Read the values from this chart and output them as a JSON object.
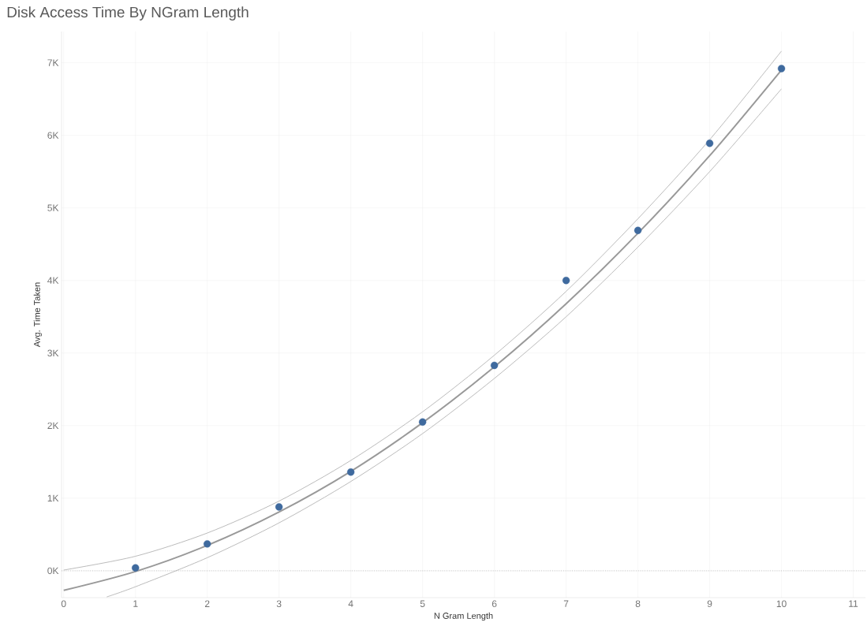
{
  "chart_data": {
    "type": "scatter",
    "title": "Disk Access Time By NGram Length",
    "xlabel": "N Gram Length",
    "ylabel": "Avg. Time Taken",
    "xlim": [
      -0.03,
      11.17
    ],
    "ylim": [
      -370,
      7430
    ],
    "xticks": [
      0,
      1,
      2,
      3,
      4,
      5,
      6,
      7,
      8,
      9,
      10,
      11
    ],
    "yticks": [
      {
        "value": 0,
        "label": "0K"
      },
      {
        "value": 1000,
        "label": "1K"
      },
      {
        "value": 2000,
        "label": "2K"
      },
      {
        "value": 3000,
        "label": "3K"
      },
      {
        "value": 4000,
        "label": "4K"
      },
      {
        "value": 5000,
        "label": "5K"
      },
      {
        "value": 6000,
        "label": "6K"
      },
      {
        "value": 7000,
        "label": "7K"
      }
    ],
    "grid": true,
    "ref_lines": [
      {
        "axis": "y",
        "value": 0,
        "color": "#b0b0b0",
        "line_style": "dotted"
      }
    ],
    "series": [
      {
        "type": "line",
        "marker": "none",
        "color": "#999999",
        "x": [
          0,
          1,
          2,
          3,
          4,
          5,
          6,
          7,
          8,
          9,
          10
        ],
        "values": [
          -270,
          -10,
          350,
          810,
          1370,
          2040,
          2810,
          3680,
          4650,
          5720,
          6900
        ]
      },
      {
        "type": "line",
        "marker": "none",
        "color": "#aaaaaa",
        "x": [
          0,
          1,
          2,
          3,
          4,
          5,
          6,
          7,
          8,
          9,
          10
        ],
        "values": [
          10,
          200,
          520,
          960,
          1520,
          2190,
          2970,
          3850,
          4850,
          5940,
          7160
        ]
      },
      {
        "type": "line",
        "marker": "none",
        "color": "#aaaaaa",
        "x": [
          0.6,
          1,
          2,
          3,
          4,
          5,
          6,
          7,
          8,
          9,
          10
        ],
        "values": [
          -360,
          -220,
          180,
          660,
          1230,
          1890,
          2650,
          3500,
          4460,
          5500,
          6640
        ]
      },
      {
        "marker": "circle",
        "color": "#3f6a9e",
        "x": [
          1,
          2,
          3,
          4,
          5,
          6,
          7,
          8,
          9,
          10
        ],
        "values": [
          40,
          370,
          880,
          1360,
          2050,
          2830,
          4000,
          4690,
          5890,
          6920
        ]
      }
    ]
  }
}
